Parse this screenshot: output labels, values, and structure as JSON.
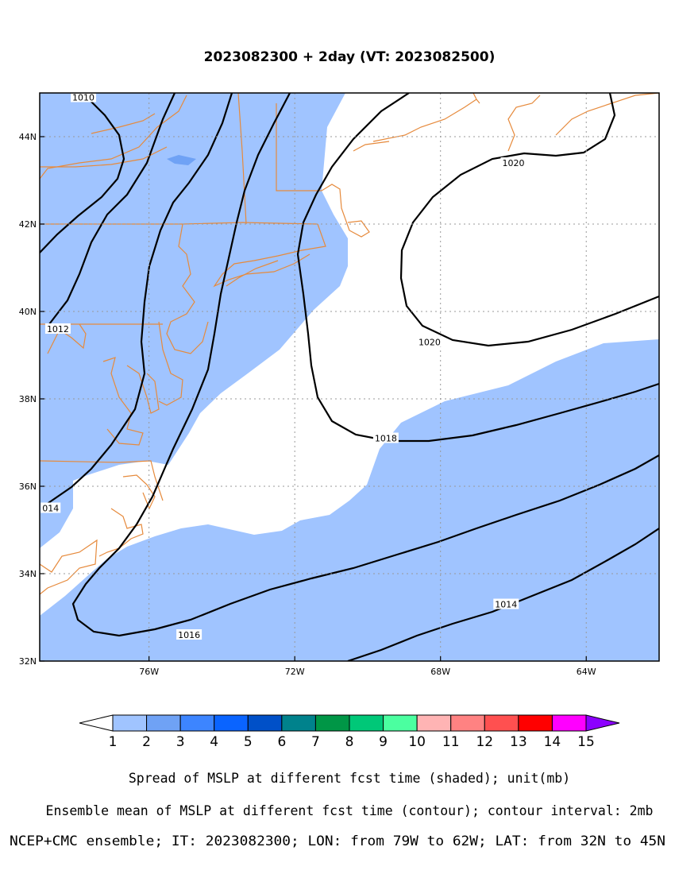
{
  "title": "2023082300 + 2day (VT: 2023082500)",
  "map": {
    "lon_range": [
      -79,
      -62
    ],
    "lat_range": [
      32,
      45
    ],
    "lon_ticks": [
      {
        "value": -76,
        "label": "76W"
      },
      {
        "value": -72,
        "label": "72W"
      },
      {
        "value": -68,
        "label": "68W"
      },
      {
        "value": -64,
        "label": "64W"
      }
    ],
    "lat_ticks": [
      {
        "value": 32,
        "label": "32N"
      },
      {
        "value": 34,
        "label": "34N"
      },
      {
        "value": 36,
        "label": "36N"
      },
      {
        "value": 38,
        "label": "38N"
      },
      {
        "value": 40,
        "label": "40N"
      },
      {
        "value": 42,
        "label": "42N"
      },
      {
        "value": 44,
        "label": "44N"
      }
    ],
    "grid": true,
    "spread_color": "#a0c4ff",
    "spread_color_2": "#6fa2f5",
    "coast_color": "#e68a3c",
    "contour_labels": [
      {
        "text": "1010",
        "lon": -77.8,
        "lat": 44.9
      },
      {
        "text": "1012",
        "lon": -78.5,
        "lat": 39.6
      },
      {
        "text": "014",
        "lon": -78.7,
        "lat": 35.5
      },
      {
        "text": "1016",
        "lon": -74.9,
        "lat": 32.6
      },
      {
        "text": "1018",
        "lon": -69.5,
        "lat": 37.1
      },
      {
        "text": "1020",
        "lon": -66.0,
        "lat": 43.4
      },
      {
        "text": "1020",
        "lon": -68.3,
        "lat": 39.3
      },
      {
        "text": "1014",
        "lon": -66.2,
        "lat": 33.3
      }
    ]
  },
  "colorbar": {
    "colors": [
      "#ffffff",
      "#a0c4ff",
      "#6fa2f5",
      "#3d85ff",
      "#0a64ff",
      "#0050c8",
      "#00828c",
      "#009646",
      "#00c878",
      "#4bffa0",
      "#ffb4b4",
      "#ff8282",
      "#ff5050",
      "#ff0000",
      "#ff00ff",
      "#8c00ff"
    ],
    "labels": [
      "1",
      "2",
      "3",
      "4",
      "5",
      "6",
      "7",
      "8",
      "9",
      "10",
      "11",
      "12",
      "13",
      "14",
      "15"
    ]
  },
  "captions": {
    "line1": "Spread of MSLP at different fcst time (shaded); unit(mb)",
    "line2": "Ensemble mean of MSLP at different fcst time (contour); contour interval: 2mb",
    "line3": "NCEP+CMC ensemble; IT: 2023082300; LON: from 79W to 62W; LAT: from 32N to 45N"
  }
}
